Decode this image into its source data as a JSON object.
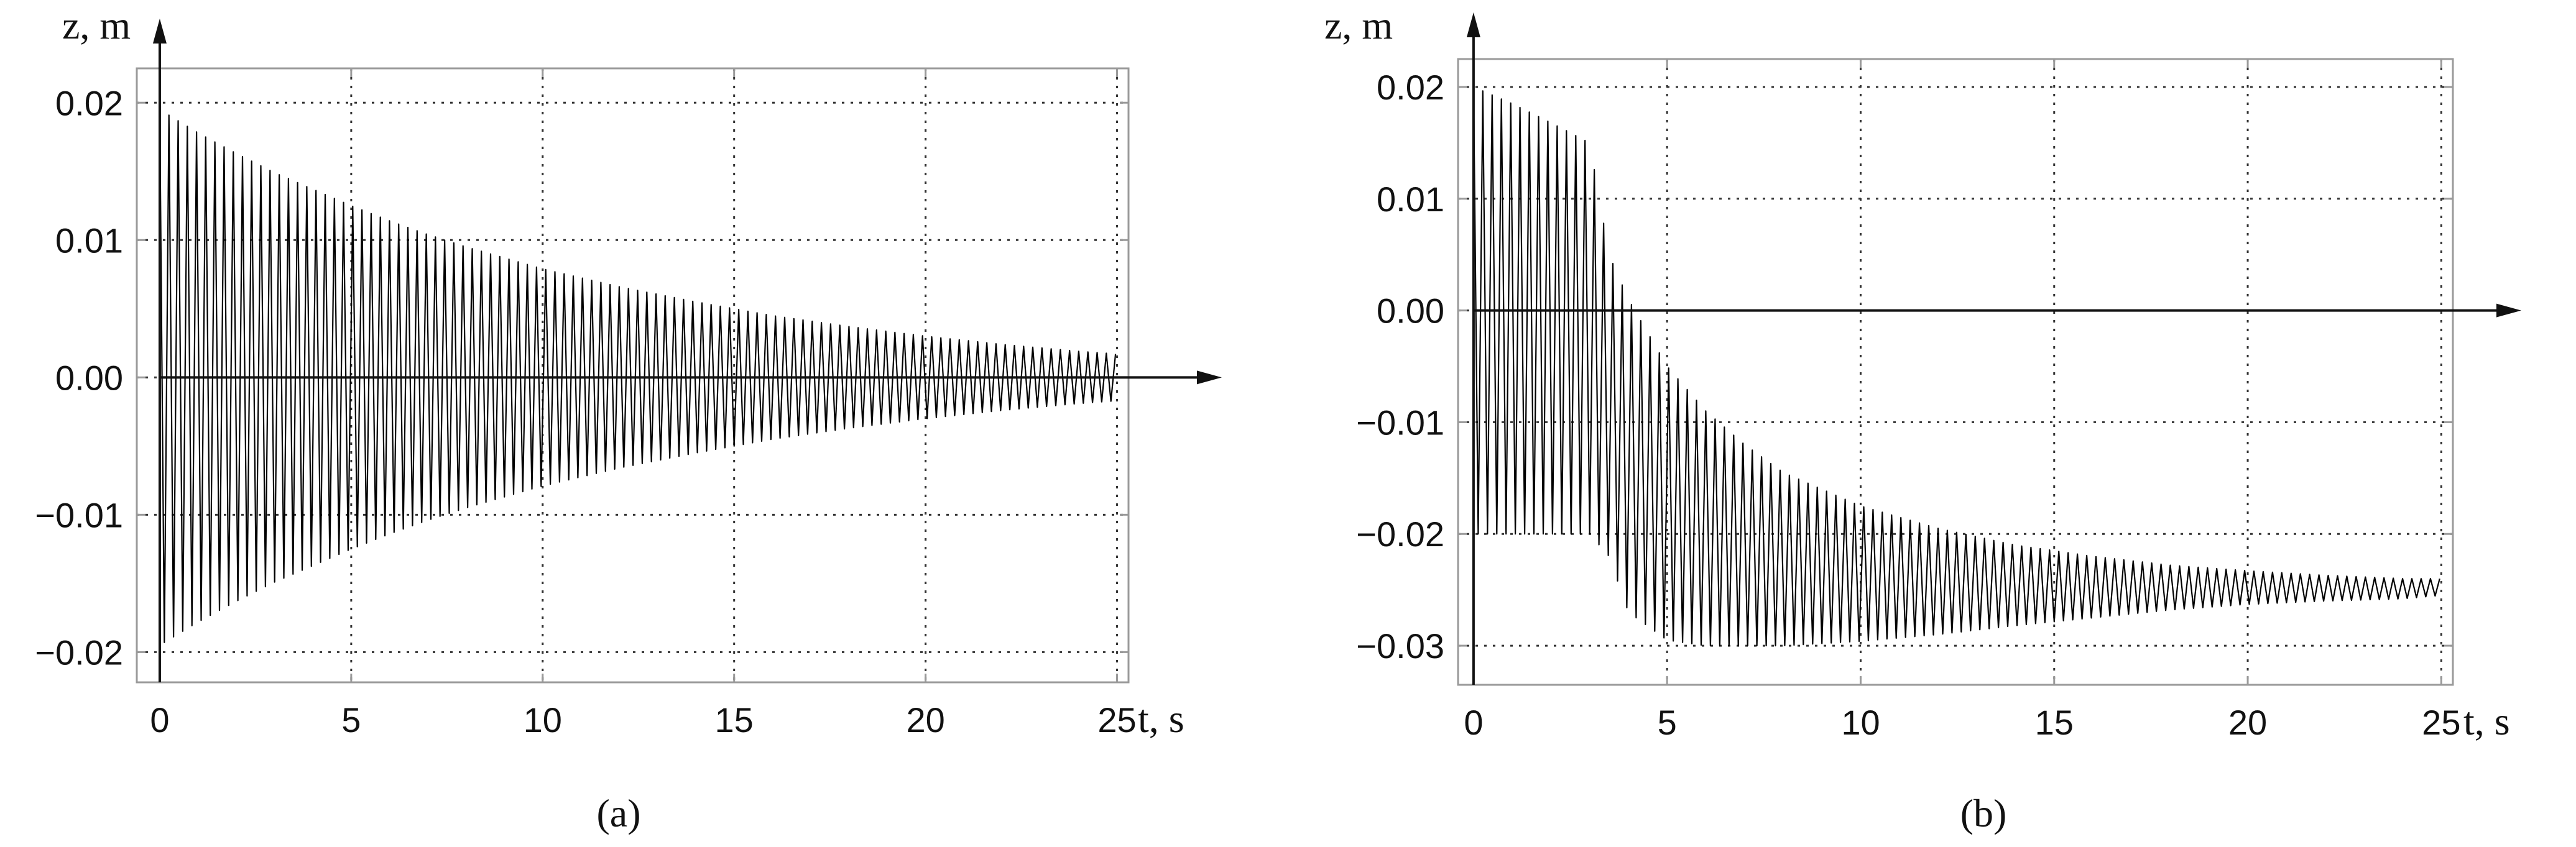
{
  "chart_data": [
    {
      "type": "line",
      "panel_label": "(a)",
      "xlabel": "t, s",
      "ylabel": "z, m",
      "xlim": [
        -0.6,
        25.3
      ],
      "ylim": [
        -0.0222,
        0.0225
      ],
      "xticks": [
        0,
        5,
        10,
        15,
        20,
        25
      ],
      "xtick_labels": [
        "0",
        "5",
        "10",
        "15",
        "20",
        "25"
      ],
      "yticks": [
        -0.02,
        -0.01,
        0.0,
        0.01,
        0.02
      ],
      "ytick_labels": [
        "−0.02",
        "−0.01",
        "0.00",
        "0.01",
        "0.02"
      ],
      "grid": true,
      "series": [
        {
          "description_points": "decaying oscillation envelope (t, upper, lower)",
          "t": [
            0,
            1,
            2,
            3,
            4,
            5,
            6,
            7,
            8,
            9,
            10,
            12,
            14,
            16,
            18,
            20,
            22,
            24,
            25
          ],
          "upper": [
            0.0195,
            0.0178,
            0.0163,
            0.0149,
            0.0137,
            0.0125,
            0.0114,
            0.0104,
            0.0095,
            0.0087,
            0.0079,
            0.0066,
            0.0055,
            0.0045,
            0.0037,
            0.003,
            0.0024,
            0.0019,
            0.0017
          ],
          "lower": [
            -0.0195,
            -0.0178,
            -0.0163,
            -0.0149,
            -0.0137,
            -0.0125,
            -0.0114,
            -0.0104,
            -0.0095,
            -0.0087,
            -0.0079,
            -0.0066,
            -0.0055,
            -0.0045,
            -0.0037,
            -0.003,
            -0.0024,
            -0.0019,
            -0.0017
          ],
          "oscillation_period": 0.24
        }
      ]
    },
    {
      "type": "line",
      "panel_label": "(b)",
      "xlabel": "t, s",
      "ylabel": "z, m",
      "xlim": [
        -0.4,
        25.3
      ],
      "ylim": [
        -0.0335,
        0.0225
      ],
      "xticks": [
        0,
        5,
        10,
        15,
        20,
        25
      ],
      "xtick_labels": [
        "0",
        "5",
        "10",
        "15",
        "20",
        "25"
      ],
      "yticks": [
        -0.03,
        -0.02,
        -0.01,
        0.0,
        0.01,
        0.02
      ],
      "ytick_labels": [
        "−0.03",
        "−0.02",
        "−0.01",
        "0.00",
        "0.01",
        "0.02"
      ],
      "grid": true,
      "series": [
        {
          "description_points": "oscillation with drift to negative equilibrium (t, upper, lower)",
          "t": [
            0,
            1,
            2,
            3,
            3.5,
            4,
            5,
            6,
            7,
            8,
            10,
            12,
            14,
            16,
            18,
            20,
            22,
            24,
            25
          ],
          "upper": [
            0.02,
            0.0185,
            0.0168,
            0.015,
            0.005,
            0.001,
            -0.005,
            -0.009,
            -0.012,
            -0.0145,
            -0.0175,
            -0.0195,
            -0.021,
            -0.022,
            -0.0228,
            -0.0233,
            -0.0237,
            -0.024,
            -0.024
          ],
          "lower": [
            -0.02,
            -0.02,
            -0.02,
            -0.02,
            -0.022,
            -0.027,
            -0.0295,
            -0.03,
            -0.03,
            -0.03,
            -0.0296,
            -0.029,
            -0.0282,
            -0.0275,
            -0.0268,
            -0.0263,
            -0.026,
            -0.0258,
            -0.0255
          ],
          "oscillation_period": 0.24
        }
      ]
    }
  ]
}
